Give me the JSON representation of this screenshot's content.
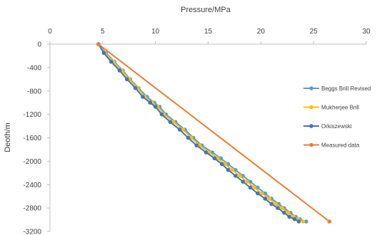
{
  "chart_data": {
    "type": "line",
    "x_axis_title": "Pressure/MPa",
    "y_axis_title": "Deoth/m",
    "x_axis_position": "top",
    "xlim": [
      0,
      30
    ],
    "ylim": [
      -3200,
      0
    ],
    "x_ticks": [
      0,
      5,
      10,
      15,
      20,
      25,
      30
    ],
    "y_ticks": [
      0,
      -400,
      -800,
      -1200,
      -1600,
      -2000,
      -2400,
      -2800,
      -3200
    ],
    "grid": false,
    "legend_position": "right",
    "series": [
      {
        "name": "Beggs Brill Revised",
        "color": "#5B9BD5",
        "x": [
          4.6,
          5.3,
          6.1,
          6.9,
          7.6,
          8.4,
          9.2,
          9.9,
          10.4,
          11.0,
          11.9,
          12.8,
          13.6,
          14.4,
          15.4,
          16.2,
          16.9,
          17.6,
          18.3,
          19.0,
          19.7,
          20.4,
          21.0,
          21.7,
          22.2,
          22.8,
          23.3,
          23.7,
          24.3
        ],
        "y": [
          0,
          -150,
          -300,
          -450,
          -600,
          -750,
          -900,
          -1000,
          -1070,
          -1200,
          -1330,
          -1460,
          -1600,
          -1730,
          -1850,
          -1950,
          -2050,
          -2150,
          -2250,
          -2350,
          -2450,
          -2550,
          -2640,
          -2730,
          -2800,
          -2880,
          -2950,
          -2990,
          -3030
        ]
      },
      {
        "name": "Mukherjee Brill",
        "color": "#FFC000",
        "x": [
          4.6,
          5.2,
          6.0,
          6.8,
          7.5,
          8.3,
          9.0,
          9.7,
          10.2,
          10.8,
          11.7,
          12.6,
          13.4,
          14.2,
          15.1,
          15.9,
          16.6,
          17.3,
          18.0,
          18.7,
          19.4,
          20.1,
          20.8,
          21.4,
          22.0,
          22.6,
          23.1,
          23.5,
          24.0
        ],
        "y": [
          0,
          -150,
          -300,
          -450,
          -600,
          -750,
          -900,
          -1000,
          -1070,
          -1200,
          -1330,
          -1460,
          -1600,
          -1730,
          -1850,
          -1950,
          -2050,
          -2150,
          -2250,
          -2350,
          -2450,
          -2550,
          -2640,
          -2730,
          -2800,
          -2880,
          -2950,
          -2990,
          -3030
        ]
      },
      {
        "name": "Orkiszewski",
        "color": "#4472C4",
        "x": [
          4.6,
          5.1,
          5.8,
          6.6,
          7.3,
          8.1,
          8.8,
          9.5,
          10.0,
          10.6,
          11.4,
          12.3,
          13.1,
          13.9,
          14.8,
          15.6,
          16.3,
          16.9,
          17.6,
          18.3,
          19.0,
          19.7,
          20.4,
          21.0,
          21.6,
          22.2,
          22.7,
          23.2,
          23.6
        ],
        "y": [
          0,
          -150,
          -300,
          -450,
          -600,
          -750,
          -900,
          -1000,
          -1070,
          -1200,
          -1330,
          -1460,
          -1600,
          -1730,
          -1850,
          -1950,
          -2050,
          -2150,
          -2250,
          -2350,
          -2450,
          -2550,
          -2640,
          -2730,
          -2800,
          -2880,
          -2950,
          -2990,
          -3030
        ]
      },
      {
        "name": "Measured data",
        "color": "#ED7D31",
        "x": [
          4.6,
          26.5
        ],
        "y": [
          0,
          -3030
        ]
      }
    ]
  }
}
